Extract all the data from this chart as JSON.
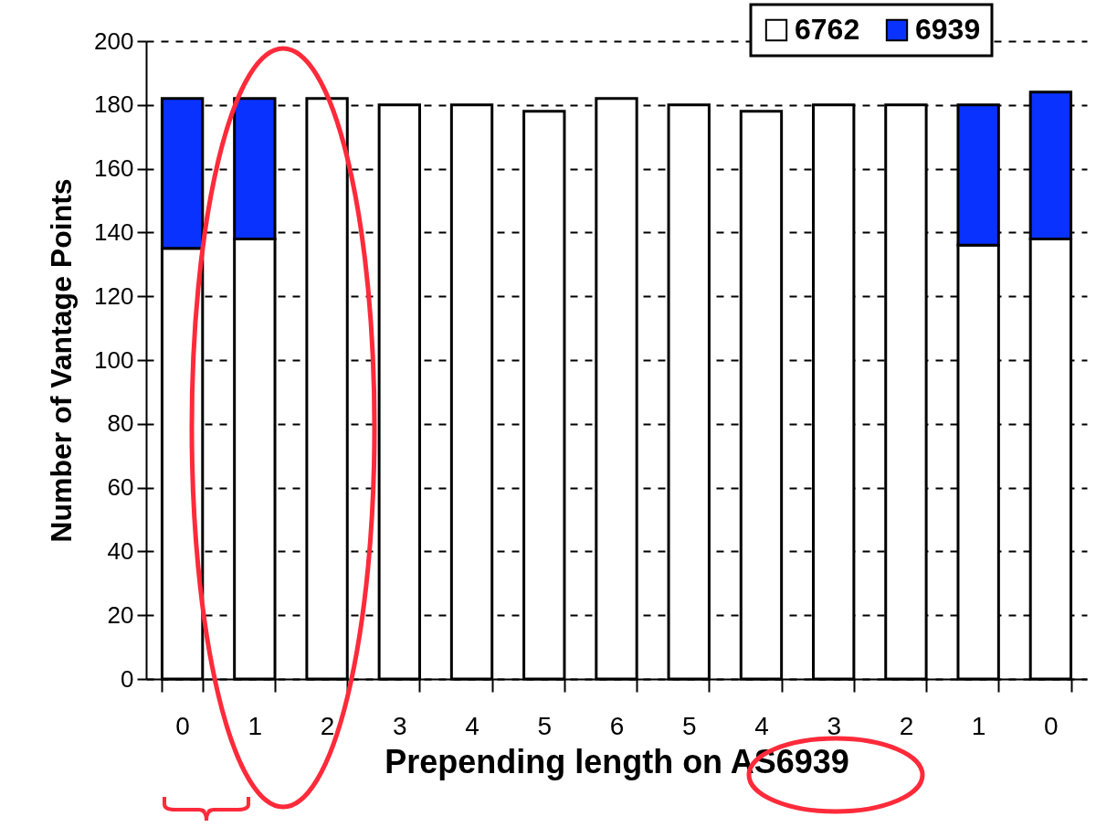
{
  "chart_data": {
    "type": "bar",
    "stacked": true,
    "xlabel": "Prepending length on AS6939",
    "ylabel": "Number of Vantage Points",
    "categories": [
      "0",
      "1",
      "2",
      "3",
      "4",
      "5",
      "6",
      "5",
      "4",
      "3",
      "2",
      "1",
      "0"
    ],
    "series": [
      {
        "name": "6762",
        "color": "#ffffff",
        "values": [
          135,
          138,
          182,
          180,
          180,
          178,
          182,
          180,
          178,
          180,
          180,
          136,
          138
        ]
      },
      {
        "name": "6939",
        "color": "#0a32ff",
        "values": [
          47,
          44,
          null,
          null,
          null,
          null,
          null,
          null,
          null,
          null,
          null,
          44,
          46
        ]
      }
    ],
    "ylim": [
      0,
      200
    ],
    "yticks": [
      0,
      20,
      40,
      60,
      80,
      100,
      120,
      140,
      160,
      180,
      200
    ],
    "grid": "y",
    "legend": "top right"
  }
}
